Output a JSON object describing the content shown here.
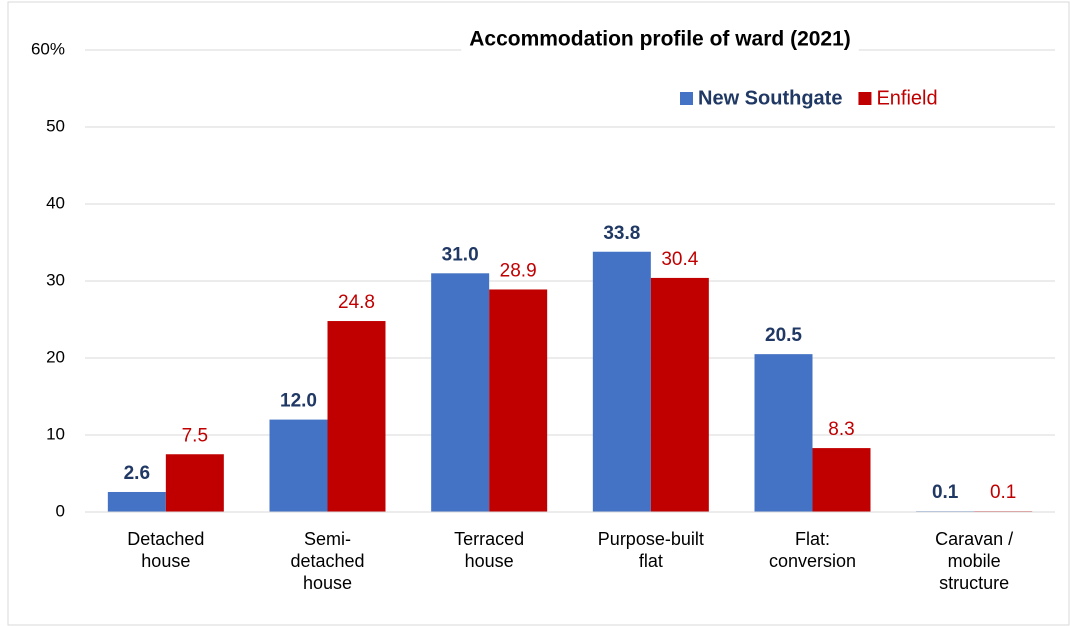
{
  "chart_data": {
    "type": "bar",
    "title": "Accommodation  profile of ward (2021)",
    "categories": [
      "Detached house",
      "Semi-detached house",
      "Terraced house",
      "Purpose-built flat",
      "Flat: conversion",
      "Caravan / mobile structure"
    ],
    "series": [
      {
        "name": "New Southgate",
        "color": "#4472c4",
        "label_color": "#203864",
        "values": [
          2.6,
          12.0,
          31.0,
          33.8,
          20.5,
          0.1
        ],
        "value_labels": [
          "2.6",
          "12.0",
          "31.0",
          "33.8",
          "20.5",
          "0.1"
        ]
      },
      {
        "name": "Enfield",
        "color": "#c00000",
        "label_color": "#c00000",
        "values": [
          7.5,
          24.8,
          28.9,
          30.4,
          8.3,
          0.1
        ],
        "value_labels": [
          "7.5",
          "24.8",
          "28.9",
          "30.4",
          "8.3",
          "0.1"
        ]
      }
    ],
    "ylim": [
      0,
      60
    ],
    "yticks": [
      0,
      10,
      20,
      30,
      40,
      50,
      {
        "value": 60,
        "label": "60%"
      }
    ],
    "grid": true,
    "legend": "top-right"
  }
}
